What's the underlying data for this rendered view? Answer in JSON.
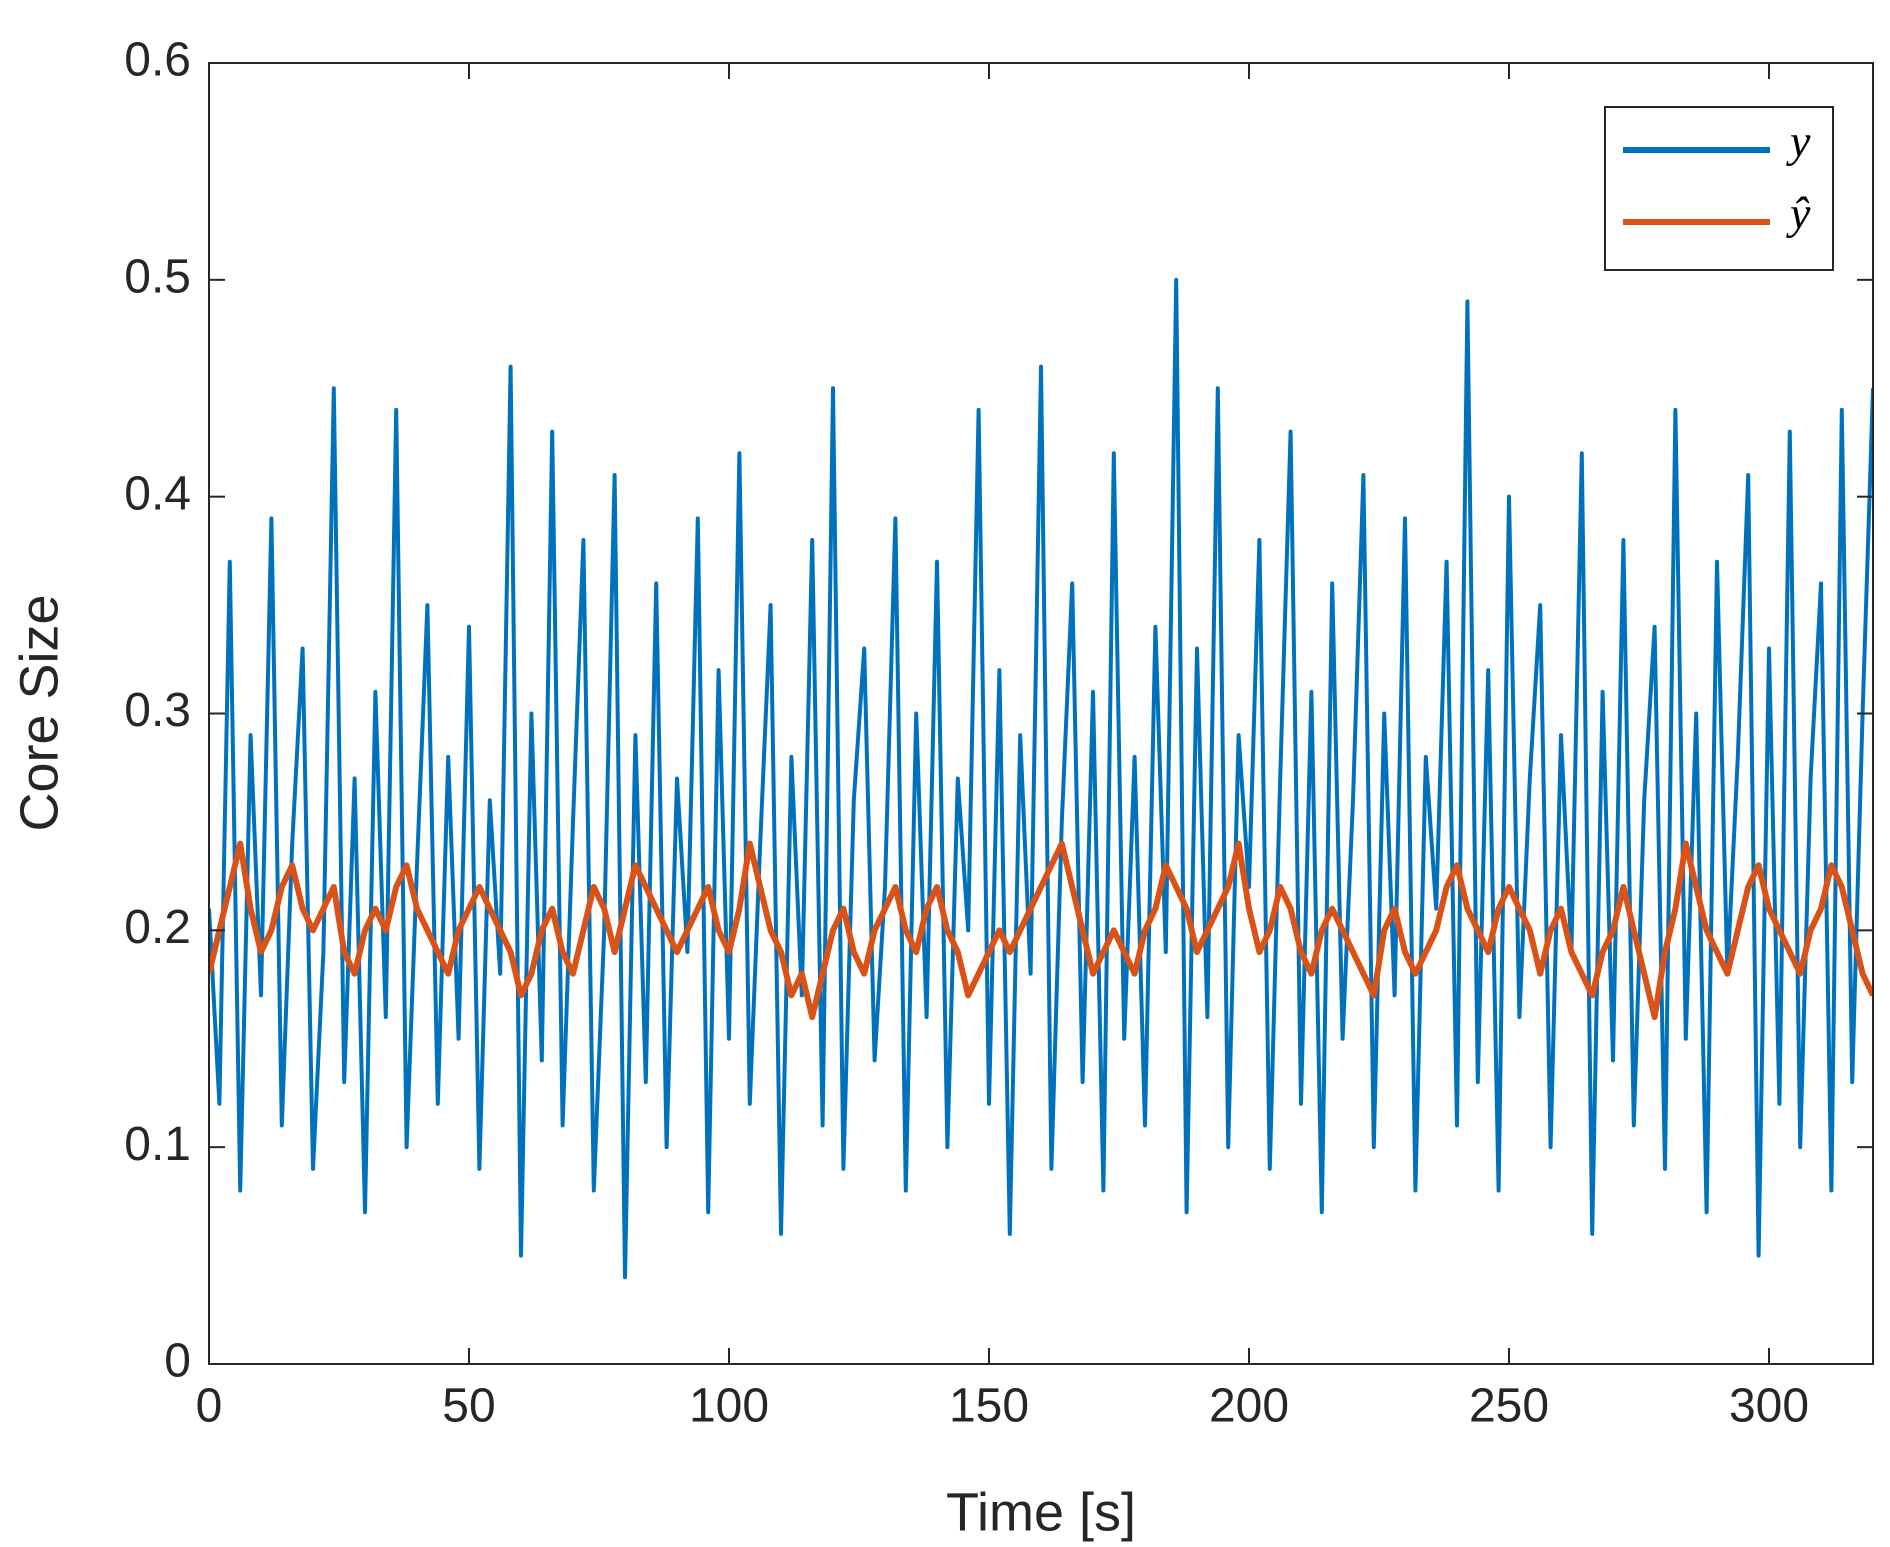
{
  "chart_data": {
    "type": "line",
    "xlabel": "Time [s]",
    "ylabel": "Core Size",
    "xlim": [
      0,
      320
    ],
    "ylim": [
      0,
      0.6
    ],
    "xticks": [
      0,
      50,
      100,
      150,
      200,
      250,
      300
    ],
    "yticks": [
      0,
      0.1,
      0.2,
      0.3,
      0.4,
      0.5,
      0.6
    ],
    "legend": "northeast",
    "x": [
      0,
      2,
      4,
      6,
      8,
      10,
      12,
      14,
      16,
      18,
      20,
      22,
      24,
      26,
      28,
      30,
      32,
      34,
      36,
      38,
      40,
      42,
      44,
      46,
      48,
      50,
      52,
      54,
      56,
      58,
      60,
      62,
      64,
      66,
      68,
      70,
      72,
      74,
      76,
      78,
      80,
      82,
      84,
      86,
      88,
      90,
      92,
      94,
      96,
      98,
      100,
      102,
      104,
      106,
      108,
      110,
      112,
      114,
      116,
      118,
      120,
      122,
      124,
      126,
      128,
      130,
      132,
      134,
      136,
      138,
      140,
      142,
      144,
      146,
      148,
      150,
      152,
      154,
      156,
      158,
      160,
      162,
      164,
      166,
      168,
      170,
      172,
      174,
      176,
      178,
      180,
      182,
      184,
      186,
      188,
      190,
      192,
      194,
      196,
      198,
      200,
      202,
      204,
      206,
      208,
      210,
      212,
      214,
      216,
      218,
      220,
      222,
      224,
      226,
      228,
      230,
      232,
      234,
      236,
      238,
      240,
      242,
      244,
      246,
      248,
      250,
      252,
      254,
      256,
      258,
      260,
      262,
      264,
      266,
      268,
      270,
      272,
      274,
      276,
      278,
      280,
      282,
      284,
      286,
      288,
      290,
      292,
      294,
      296,
      298,
      300,
      302,
      304,
      306,
      308,
      310,
      312,
      314,
      316,
      318,
      320
    ],
    "series": [
      {
        "name": "y",
        "color": "#0072bd",
        "values": [
          0.21,
          0.12,
          0.37,
          0.08,
          0.29,
          0.17,
          0.39,
          0.11,
          0.24,
          0.33,
          0.09,
          0.19,
          0.45,
          0.13,
          0.27,
          0.07,
          0.31,
          0.16,
          0.44,
          0.1,
          0.23,
          0.35,
          0.12,
          0.28,
          0.15,
          0.34,
          0.09,
          0.26,
          0.18,
          0.46,
          0.05,
          0.3,
          0.14,
          0.43,
          0.11,
          0.25,
          0.38,
          0.08,
          0.2,
          0.41,
          0.04,
          0.29,
          0.13,
          0.36,
          0.1,
          0.27,
          0.19,
          0.39,
          0.07,
          0.32,
          0.15,
          0.42,
          0.12,
          0.24,
          0.35,
          0.06,
          0.28,
          0.17,
          0.38,
          0.11,
          0.45,
          0.09,
          0.26,
          0.33,
          0.14,
          0.22,
          0.39,
          0.08,
          0.3,
          0.16,
          0.37,
          0.1,
          0.27,
          0.2,
          0.44,
          0.12,
          0.32,
          0.06,
          0.29,
          0.18,
          0.46,
          0.09,
          0.25,
          0.36,
          0.13,
          0.31,
          0.08,
          0.42,
          0.15,
          0.28,
          0.11,
          0.34,
          0.19,
          0.5,
          0.07,
          0.33,
          0.16,
          0.45,
          0.1,
          0.29,
          0.22,
          0.38,
          0.09,
          0.27,
          0.43,
          0.12,
          0.31,
          0.07,
          0.36,
          0.15,
          0.26,
          0.41,
          0.1,
          0.3,
          0.17,
          0.39,
          0.08,
          0.28,
          0.21,
          0.37,
          0.11,
          0.49,
          0.13,
          0.32,
          0.08,
          0.4,
          0.16,
          0.27,
          0.35,
          0.1,
          0.29,
          0.19,
          0.42,
          0.06,
          0.31,
          0.14,
          0.38,
          0.11,
          0.26,
          0.34,
          0.09,
          0.44,
          0.15,
          0.3,
          0.07,
          0.37,
          0.18,
          0.28,
          0.41,
          0.05,
          0.33,
          0.12,
          0.43,
          0.1,
          0.27,
          0.36,
          0.08,
          0.44,
          0.13,
          0.3,
          0.45
        ]
      },
      {
        "name": "ŷ",
        "color": "#d95319",
        "values": [
          0.18,
          0.2,
          0.22,
          0.24,
          0.21,
          0.19,
          0.2,
          0.22,
          0.23,
          0.21,
          0.2,
          0.21,
          0.22,
          0.19,
          0.18,
          0.2,
          0.21,
          0.2,
          0.22,
          0.23,
          0.21,
          0.2,
          0.19,
          0.18,
          0.2,
          0.21,
          0.22,
          0.21,
          0.2,
          0.19,
          0.17,
          0.18,
          0.2,
          0.21,
          0.19,
          0.18,
          0.2,
          0.22,
          0.21,
          0.19,
          0.21,
          0.23,
          0.22,
          0.21,
          0.2,
          0.19,
          0.2,
          0.21,
          0.22,
          0.2,
          0.19,
          0.21,
          0.24,
          0.22,
          0.2,
          0.19,
          0.17,
          0.18,
          0.16,
          0.18,
          0.2,
          0.21,
          0.19,
          0.18,
          0.2,
          0.21,
          0.22,
          0.2,
          0.19,
          0.21,
          0.22,
          0.2,
          0.19,
          0.17,
          0.18,
          0.19,
          0.2,
          0.19,
          0.2,
          0.21,
          0.22,
          0.23,
          0.24,
          0.22,
          0.2,
          0.18,
          0.19,
          0.2,
          0.19,
          0.18,
          0.2,
          0.21,
          0.23,
          0.22,
          0.21,
          0.19,
          0.2,
          0.21,
          0.22,
          0.24,
          0.21,
          0.19,
          0.2,
          0.22,
          0.21,
          0.19,
          0.18,
          0.2,
          0.21,
          0.2,
          0.19,
          0.18,
          0.17,
          0.2,
          0.21,
          0.19,
          0.18,
          0.19,
          0.2,
          0.22,
          0.23,
          0.21,
          0.2,
          0.19,
          0.21,
          0.22,
          0.21,
          0.2,
          0.18,
          0.2,
          0.21,
          0.19,
          0.18,
          0.17,
          0.19,
          0.2,
          0.22,
          0.2,
          0.18,
          0.16,
          0.19,
          0.21,
          0.24,
          0.22,
          0.2,
          0.19,
          0.18,
          0.2,
          0.22,
          0.23,
          0.21,
          0.2,
          0.19,
          0.18,
          0.2,
          0.21,
          0.23,
          0.22,
          0.2,
          0.18,
          0.17
        ]
      }
    ]
  }
}
